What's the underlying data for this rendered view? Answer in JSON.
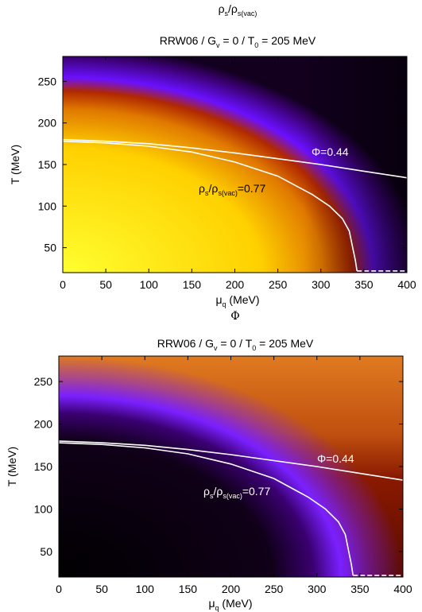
{
  "chart_data": [
    {
      "type": "heatmap",
      "title_html": "ρs/ρs(vac)",
      "title_main": "ρ",
      "title_sub": "s",
      "title_slash": "/ρ",
      "title_sub2": "s(vac)",
      "subtitle": "RRW06 / G",
      "subtitle_sub": "v",
      "subtitle_rest": " = 0 / T",
      "subtitle_sub2": "0",
      "subtitle_end": " = 205 MeV",
      "xlabel": "μ",
      "xlabel_sub": "q",
      "xlabel_rest": " (MeV)",
      "ylabel": "T (MeV)",
      "xlim": [
        0,
        400
      ],
      "ylim": [
        20,
        280
      ],
      "xticks": [
        "0",
        "50",
        "100",
        "150",
        "200",
        "250",
        "300",
        "350",
        "400"
      ],
      "yticks": [
        "50",
        "100",
        "150",
        "200",
        "250"
      ],
      "colormap": [
        "#000000",
        "#3a0060",
        "#7a10ff",
        "#c02000",
        "#ff8c00",
        "#ffff40"
      ],
      "annotations": {
        "phi_label": "Φ=0.44",
        "rho_label_a": "ρ",
        "rho_label_b": "s",
        "rho_label_c": "/ρ",
        "rho_label_d": "s(vac)",
        "rho_label_e": "=0.77"
      },
      "series": [
        {
          "contour": "phi",
          "x": [
            0,
            50,
            100,
            150,
            200,
            250,
            300,
            350,
            400
          ],
          "y": [
            180,
            178,
            175,
            170,
            164,
            157,
            150,
            142,
            134
          ]
        },
        {
          "contour": "rho",
          "x": [
            0,
            50,
            100,
            150,
            200,
            250,
            290,
            310,
            325,
            333,
            337,
            340,
            342
          ],
          "y": [
            178,
            176,
            172,
            165,
            153,
            136,
            114,
            100,
            85,
            70,
            50,
            35,
            22
          ]
        },
        {
          "contour": "rho-dashed",
          "x": [
            342,
            400
          ],
          "y": [
            22,
            22
          ]
        }
      ]
    },
    {
      "type": "heatmap",
      "title_main": "Φ",
      "subtitle": "RRW06 / G",
      "subtitle_sub": "v",
      "subtitle_rest": " = 0 / T",
      "subtitle_sub2": "0",
      "subtitle_end": " = 205 MeV",
      "xlabel": "μ",
      "xlabel_sub": "q",
      "xlabel_rest": " (MeV)",
      "ylabel": "T (MeV)",
      "xlim": [
        0,
        400
      ],
      "ylim": [
        20,
        280
      ],
      "xticks": [
        "0",
        "50",
        "100",
        "150",
        "200",
        "250",
        "300",
        "350",
        "400"
      ],
      "yticks": [
        "50",
        "100",
        "150",
        "200",
        "250"
      ],
      "colormap": [
        "#000000",
        "#3a0060",
        "#7a10ff",
        "#c02000",
        "#ff8c00"
      ],
      "annotations": {
        "phi_label": "Φ=0.44",
        "rho_label_a": "ρ",
        "rho_label_b": "s",
        "rho_label_c": "/ρ",
        "rho_label_d": "s(vac)",
        "rho_label_e": "=0.77"
      },
      "series": [
        {
          "contour": "phi",
          "x": [
            0,
            50,
            100,
            150,
            200,
            250,
            300,
            350,
            400
          ],
          "y": [
            180,
            178,
            175,
            170,
            164,
            157,
            150,
            142,
            134
          ]
        },
        {
          "contour": "rho",
          "x": [
            0,
            50,
            100,
            150,
            200,
            250,
            290,
            310,
            325,
            333,
            337,
            340,
            342
          ],
          "y": [
            178,
            176,
            172,
            165,
            153,
            136,
            114,
            100,
            85,
            70,
            50,
            35,
            22
          ]
        },
        {
          "contour": "rho-dashed",
          "x": [
            342,
            400
          ],
          "y": [
            22,
            22
          ]
        }
      ]
    }
  ]
}
